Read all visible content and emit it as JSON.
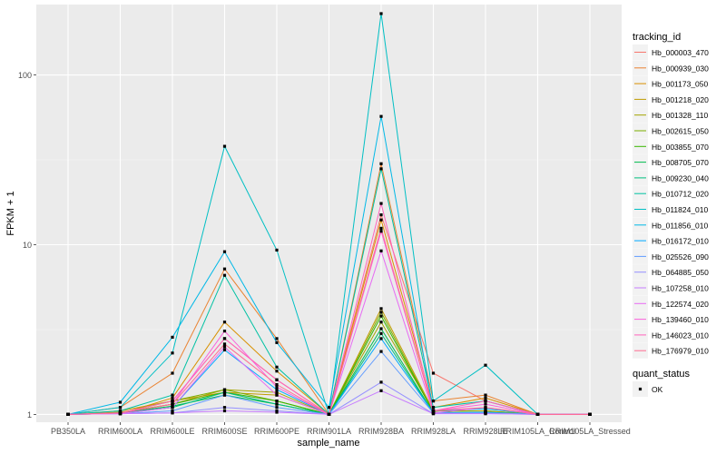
{
  "chart_data": {
    "type": "line",
    "xlabel": "sample_name",
    "ylabel": "FPKM + 1",
    "y_scale": "log10",
    "ylim": [
      0.9,
      260
    ],
    "yticks": [
      1,
      10,
      100
    ],
    "ytick_labels": [
      "1",
      "10",
      "100"
    ],
    "grid": true,
    "legend_position": "right",
    "categories": [
      "PB350LA",
      "RRIM600LA",
      "RRIM600LE",
      "RRIM600SE",
      "RRIM600PE",
      "RRIM901LA",
      "RRIM928BA",
      "RRIM928LA",
      "RRIM928LE",
      "RRIM105LA_Control",
      "RRIM105LA_Stressed"
    ],
    "legend_title": "tracking_id",
    "series": [
      {
        "name": "Hb_000003_470",
        "color": "#F8766D",
        "values": [
          1,
          1.02,
          1.2,
          2.8,
          1.6,
          1,
          15,
          1.75,
          1.2,
          1,
          1
        ]
      },
      {
        "name": "Hb_000939_030",
        "color": "#EA8331",
        "values": [
          1,
          1.1,
          1.75,
          7.2,
          2.8,
          1,
          30,
          1.2,
          1.3,
          1,
          1
        ]
      },
      {
        "name": "Hb_001173_050",
        "color": "#D89000",
        "values": [
          1,
          1.01,
          1.25,
          3.5,
          1.8,
          1,
          14,
          1.1,
          1.25,
          1,
          1
        ]
      },
      {
        "name": "Hb_001218_020",
        "color": "#C09B00",
        "values": [
          1,
          1.05,
          1.2,
          1.35,
          1.3,
          1,
          4.2,
          1.05,
          1.05,
          1,
          1
        ]
      },
      {
        "name": "Hb_001328_110",
        "color": "#A3A500",
        "values": [
          1,
          1.03,
          1.15,
          1.4,
          1.35,
          1,
          3.5,
          1.05,
          1.05,
          1,
          1
        ]
      },
      {
        "name": "Hb_002615_050",
        "color": "#7CAE00",
        "values": [
          1,
          1.02,
          1.2,
          1.4,
          1.2,
          1,
          4,
          1.03,
          1.03,
          1,
          1
        ]
      },
      {
        "name": "Hb_003855_070",
        "color": "#39B600",
        "values": [
          1,
          1.02,
          1.15,
          1.35,
          1.2,
          1,
          3.8,
          1.03,
          1.03,
          1,
          1
        ]
      },
      {
        "name": "Hb_008705_070",
        "color": "#00BB4E",
        "values": [
          1,
          1.02,
          1.12,
          1.3,
          1.15,
          1,
          3.2,
          1.02,
          1.02,
          1,
          1
        ]
      },
      {
        "name": "Hb_009230_040",
        "color": "#00BF7D",
        "values": [
          1,
          1.02,
          1.1,
          1.35,
          1.15,
          1,
          3,
          1.02,
          1.03,
          1,
          1
        ]
      },
      {
        "name": "Hb_010712_020",
        "color": "#00C1A3",
        "values": [
          1,
          1.05,
          1.3,
          6.6,
          1.9,
          1,
          28,
          1.1,
          1.2,
          1,
          1
        ]
      },
      {
        "name": "Hb_011824_010",
        "color": "#00BFC4",
        "values": [
          1,
          1.1,
          2.3,
          38,
          9.3,
          1,
          230,
          1.2,
          1.95,
          1,
          1
        ]
      },
      {
        "name": "Hb_011856_010",
        "color": "#00B8E7",
        "values": [
          1,
          1.18,
          2.85,
          9.1,
          2.65,
          1.1,
          57,
          1.05,
          1.08,
          1,
          1
        ]
      },
      {
        "name": "Hb_016172_010",
        "color": "#00A9FF",
        "values": [
          1,
          1.01,
          1.1,
          2.4,
          1.4,
          1,
          2.8,
          1.02,
          1.03,
          1,
          1
        ]
      },
      {
        "name": "Hb_025526_090",
        "color": "#619CFF",
        "values": [
          1,
          1.01,
          1.05,
          1.3,
          1.1,
          1,
          2.35,
          1.02,
          1.02,
          1,
          1
        ]
      },
      {
        "name": "Hb_064885_050",
        "color": "#9590FF",
        "values": [
          1,
          1.01,
          1.02,
          1.1,
          1.05,
          1,
          1.55,
          1.01,
          1.01,
          1,
          1
        ]
      },
      {
        "name": "Hb_107258_010",
        "color": "#C77CFF",
        "values": [
          1,
          1.01,
          1.02,
          1.05,
          1.03,
          1,
          1.38,
          1.01,
          1.01,
          1,
          1
        ]
      },
      {
        "name": "Hb_122574_020",
        "color": "#E76BF3",
        "values": [
          1,
          1.01,
          1.1,
          2.5,
          1.3,
          1,
          9.2,
          1.02,
          1.1,
          1,
          1
        ]
      },
      {
        "name": "Hb_139460_010",
        "color": "#FA62DB",
        "values": [
          1,
          1.02,
          1.15,
          3.1,
          1.45,
          1,
          12,
          1.05,
          1.15,
          1,
          1
        ]
      },
      {
        "name": "Hb_146023_010",
        "color": "#FF62BC",
        "values": [
          1,
          1.02,
          1.2,
          2.8,
          1.6,
          1,
          17.5,
          1.05,
          1.2,
          1,
          1
        ]
      },
      {
        "name": "Hb_176979_010",
        "color": "#FF6C91",
        "values": [
          1,
          1.02,
          1.15,
          2.6,
          1.5,
          1,
          12.5,
          1.05,
          1.1,
          1,
          1
        ]
      }
    ],
    "shape_legend_title": "quant_status",
    "shape_legend_items": [
      "OK"
    ]
  }
}
